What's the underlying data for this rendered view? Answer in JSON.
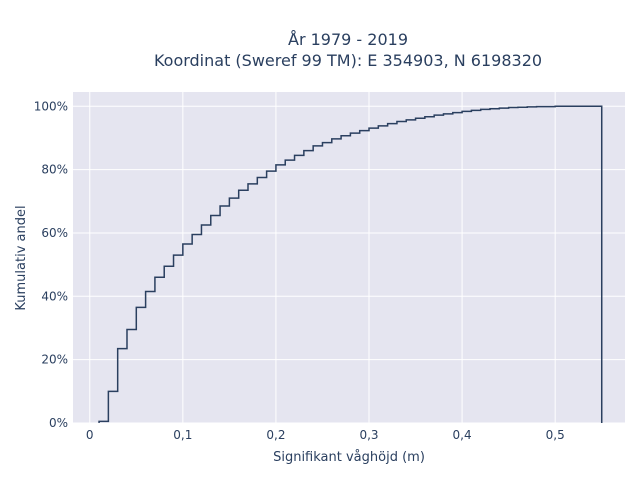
{
  "chart_data": {
    "type": "line",
    "step": true,
    "title_line1": "År 1979 - 2019",
    "title_line2": "Koordinat (Sweref 99 TM): E 354903, N 6198320",
    "xlabel": "Signifikant våghöjd (m)",
    "ylabel": "Kumulativ andel",
    "xlim": [
      -0.018,
      0.575
    ],
    "ylim": [
      0,
      1.045
    ],
    "x_ticks": [
      0,
      0.1,
      0.2,
      0.3,
      0.4,
      0.5
    ],
    "x_tick_labels": [
      "0",
      "0,1",
      "0,2",
      "0,3",
      "0,4",
      "0,5"
    ],
    "y_ticks": [
      0,
      0.2,
      0.4,
      0.6,
      0.8,
      1.0
    ],
    "y_tick_labels": [
      "0%",
      "20%",
      "40%",
      "60%",
      "80%",
      "100%"
    ],
    "grid": true,
    "background_color": "#e5e5f0",
    "line_color": "#2a3f5f",
    "series": [
      {
        "bin_edges": [
          0.01,
          0.02,
          0.03,
          0.04,
          0.05,
          0.06,
          0.07,
          0.08,
          0.09,
          0.1,
          0.11,
          0.12,
          0.13,
          0.14,
          0.15,
          0.16,
          0.17,
          0.18,
          0.19,
          0.2,
          0.21,
          0.22,
          0.23,
          0.24,
          0.25,
          0.26,
          0.27,
          0.28,
          0.29,
          0.3,
          0.31,
          0.32,
          0.33,
          0.34,
          0.35,
          0.36,
          0.37,
          0.38,
          0.39,
          0.4,
          0.41,
          0.42,
          0.43,
          0.44,
          0.45,
          0.46,
          0.47,
          0.48,
          0.49,
          0.5,
          0.51,
          0.52,
          0.53,
          0.54,
          0.55
        ],
        "cumulative": [
          0.005,
          0.1,
          0.235,
          0.295,
          0.365,
          0.415,
          0.46,
          0.495,
          0.53,
          0.565,
          0.595,
          0.625,
          0.655,
          0.685,
          0.71,
          0.735,
          0.755,
          0.775,
          0.795,
          0.815,
          0.83,
          0.845,
          0.86,
          0.875,
          0.885,
          0.897,
          0.907,
          0.915,
          0.923,
          0.931,
          0.938,
          0.945,
          0.952,
          0.957,
          0.962,
          0.967,
          0.972,
          0.976,
          0.98,
          0.984,
          0.987,
          0.99,
          0.992,
          0.994,
          0.996,
          0.997,
          0.998,
          0.999,
          0.999,
          1.0,
          1.0,
          1.0,
          1.0,
          1.0
        ]
      }
    ]
  }
}
